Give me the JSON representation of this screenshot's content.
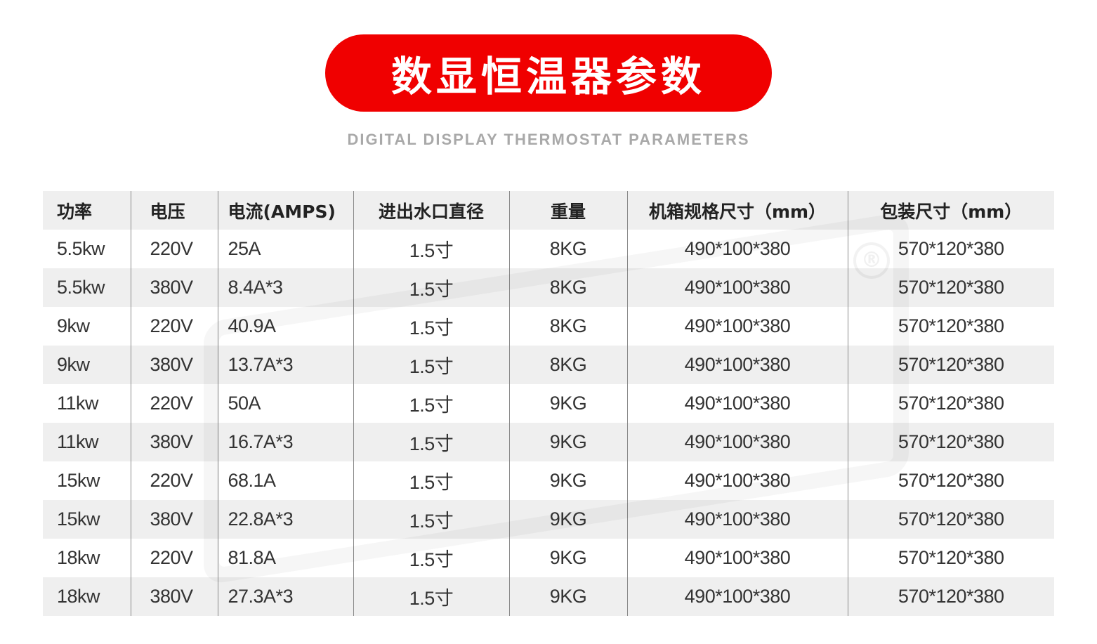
{
  "title": "数显恒温器参数",
  "subtitle": "DIGITAL DISPLAY THERMOSTAT PARAMETERS",
  "colors": {
    "accent": "#f00000",
    "row_alt": "#efefef",
    "subtitle": "#a9a9a9"
  },
  "table": {
    "headers": [
      "功率",
      "电压",
      "电流(AMPS)",
      "进出水口直径",
      "重量",
      "机箱规格尺寸（mm）",
      "包装尺寸（mm）"
    ],
    "rows": [
      [
        "5.5kw",
        "220V",
        "25A",
        "1.5寸",
        "8KG",
        "490*100*380",
        "570*120*380"
      ],
      [
        "5.5kw",
        "380V",
        "8.4A*3",
        "1.5寸",
        "8KG",
        "490*100*380",
        "570*120*380"
      ],
      [
        "9kw",
        "220V",
        "40.9A",
        "1.5寸",
        "8KG",
        "490*100*380",
        "570*120*380"
      ],
      [
        "9kw",
        "380V",
        "13.7A*3",
        "1.5寸",
        "8KG",
        "490*100*380",
        "570*120*380"
      ],
      [
        "11kw",
        "220V",
        "50A",
        "1.5寸",
        "9KG",
        "490*100*380",
        "570*120*380"
      ],
      [
        "11kw",
        "380V",
        "16.7A*3",
        "1.5寸",
        "9KG",
        "490*100*380",
        "570*120*380"
      ],
      [
        "15kw",
        "220V",
        "68.1A",
        "1.5寸",
        "9KG",
        "490*100*380",
        "570*120*380"
      ],
      [
        "15kw",
        "380V",
        "22.8A*3",
        "1.5寸",
        "9KG",
        "490*100*380",
        "570*120*380"
      ],
      [
        "18kw",
        "220V",
        "81.8A",
        "1.5寸",
        "9KG",
        "490*100*380",
        "570*120*380"
      ],
      [
        "18kw",
        "380V",
        "27.3A*3",
        "1.5寸",
        "9KG",
        "490*100*380",
        "570*120*380"
      ]
    ]
  }
}
